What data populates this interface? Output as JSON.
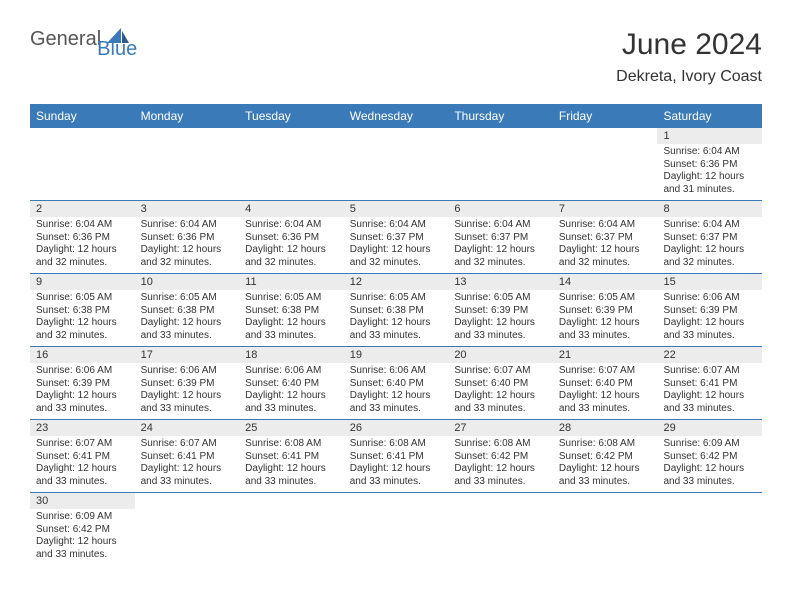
{
  "logo": {
    "part1": "General",
    "part2": "Blue"
  },
  "title": "June 2024",
  "location": "Dekreta, Ivory Coast",
  "colors": {
    "header_bg": "#3a7ab8",
    "header_text": "#ffffff",
    "daynum_bg": "#ececec",
    "body_text": "#333333",
    "border": "#3a7ab8"
  },
  "dayNames": [
    "Sunday",
    "Monday",
    "Tuesday",
    "Wednesday",
    "Thursday",
    "Friday",
    "Saturday"
  ],
  "weeks": [
    [
      {
        "empty": true
      },
      {
        "empty": true
      },
      {
        "empty": true
      },
      {
        "empty": true
      },
      {
        "empty": true
      },
      {
        "empty": true
      },
      {
        "day": "1",
        "sunrise": "Sunrise: 6:04 AM",
        "sunset": "Sunset: 6:36 PM",
        "dl1": "Daylight: 12 hours",
        "dl2": "and 31 minutes."
      }
    ],
    [
      {
        "day": "2",
        "sunrise": "Sunrise: 6:04 AM",
        "sunset": "Sunset: 6:36 PM",
        "dl1": "Daylight: 12 hours",
        "dl2": "and 32 minutes."
      },
      {
        "day": "3",
        "sunrise": "Sunrise: 6:04 AM",
        "sunset": "Sunset: 6:36 PM",
        "dl1": "Daylight: 12 hours",
        "dl2": "and 32 minutes."
      },
      {
        "day": "4",
        "sunrise": "Sunrise: 6:04 AM",
        "sunset": "Sunset: 6:36 PM",
        "dl1": "Daylight: 12 hours",
        "dl2": "and 32 minutes."
      },
      {
        "day": "5",
        "sunrise": "Sunrise: 6:04 AM",
        "sunset": "Sunset: 6:37 PM",
        "dl1": "Daylight: 12 hours",
        "dl2": "and 32 minutes."
      },
      {
        "day": "6",
        "sunrise": "Sunrise: 6:04 AM",
        "sunset": "Sunset: 6:37 PM",
        "dl1": "Daylight: 12 hours",
        "dl2": "and 32 minutes."
      },
      {
        "day": "7",
        "sunrise": "Sunrise: 6:04 AM",
        "sunset": "Sunset: 6:37 PM",
        "dl1": "Daylight: 12 hours",
        "dl2": "and 32 minutes."
      },
      {
        "day": "8",
        "sunrise": "Sunrise: 6:04 AM",
        "sunset": "Sunset: 6:37 PM",
        "dl1": "Daylight: 12 hours",
        "dl2": "and 32 minutes."
      }
    ],
    [
      {
        "day": "9",
        "sunrise": "Sunrise: 6:05 AM",
        "sunset": "Sunset: 6:38 PM",
        "dl1": "Daylight: 12 hours",
        "dl2": "and 32 minutes."
      },
      {
        "day": "10",
        "sunrise": "Sunrise: 6:05 AM",
        "sunset": "Sunset: 6:38 PM",
        "dl1": "Daylight: 12 hours",
        "dl2": "and 33 minutes."
      },
      {
        "day": "11",
        "sunrise": "Sunrise: 6:05 AM",
        "sunset": "Sunset: 6:38 PM",
        "dl1": "Daylight: 12 hours",
        "dl2": "and 33 minutes."
      },
      {
        "day": "12",
        "sunrise": "Sunrise: 6:05 AM",
        "sunset": "Sunset: 6:38 PM",
        "dl1": "Daylight: 12 hours",
        "dl2": "and 33 minutes."
      },
      {
        "day": "13",
        "sunrise": "Sunrise: 6:05 AM",
        "sunset": "Sunset: 6:39 PM",
        "dl1": "Daylight: 12 hours",
        "dl2": "and 33 minutes."
      },
      {
        "day": "14",
        "sunrise": "Sunrise: 6:05 AM",
        "sunset": "Sunset: 6:39 PM",
        "dl1": "Daylight: 12 hours",
        "dl2": "and 33 minutes."
      },
      {
        "day": "15",
        "sunrise": "Sunrise: 6:06 AM",
        "sunset": "Sunset: 6:39 PM",
        "dl1": "Daylight: 12 hours",
        "dl2": "and 33 minutes."
      }
    ],
    [
      {
        "day": "16",
        "sunrise": "Sunrise: 6:06 AM",
        "sunset": "Sunset: 6:39 PM",
        "dl1": "Daylight: 12 hours",
        "dl2": "and 33 minutes."
      },
      {
        "day": "17",
        "sunrise": "Sunrise: 6:06 AM",
        "sunset": "Sunset: 6:39 PM",
        "dl1": "Daylight: 12 hours",
        "dl2": "and 33 minutes."
      },
      {
        "day": "18",
        "sunrise": "Sunrise: 6:06 AM",
        "sunset": "Sunset: 6:40 PM",
        "dl1": "Daylight: 12 hours",
        "dl2": "and 33 minutes."
      },
      {
        "day": "19",
        "sunrise": "Sunrise: 6:06 AM",
        "sunset": "Sunset: 6:40 PM",
        "dl1": "Daylight: 12 hours",
        "dl2": "and 33 minutes."
      },
      {
        "day": "20",
        "sunrise": "Sunrise: 6:07 AM",
        "sunset": "Sunset: 6:40 PM",
        "dl1": "Daylight: 12 hours",
        "dl2": "and 33 minutes."
      },
      {
        "day": "21",
        "sunrise": "Sunrise: 6:07 AM",
        "sunset": "Sunset: 6:40 PM",
        "dl1": "Daylight: 12 hours",
        "dl2": "and 33 minutes."
      },
      {
        "day": "22",
        "sunrise": "Sunrise: 6:07 AM",
        "sunset": "Sunset: 6:41 PM",
        "dl1": "Daylight: 12 hours",
        "dl2": "and 33 minutes."
      }
    ],
    [
      {
        "day": "23",
        "sunrise": "Sunrise: 6:07 AM",
        "sunset": "Sunset: 6:41 PM",
        "dl1": "Daylight: 12 hours",
        "dl2": "and 33 minutes."
      },
      {
        "day": "24",
        "sunrise": "Sunrise: 6:07 AM",
        "sunset": "Sunset: 6:41 PM",
        "dl1": "Daylight: 12 hours",
        "dl2": "and 33 minutes."
      },
      {
        "day": "25",
        "sunrise": "Sunrise: 6:08 AM",
        "sunset": "Sunset: 6:41 PM",
        "dl1": "Daylight: 12 hours",
        "dl2": "and 33 minutes."
      },
      {
        "day": "26",
        "sunrise": "Sunrise: 6:08 AM",
        "sunset": "Sunset: 6:41 PM",
        "dl1": "Daylight: 12 hours",
        "dl2": "and 33 minutes."
      },
      {
        "day": "27",
        "sunrise": "Sunrise: 6:08 AM",
        "sunset": "Sunset: 6:42 PM",
        "dl1": "Daylight: 12 hours",
        "dl2": "and 33 minutes."
      },
      {
        "day": "28",
        "sunrise": "Sunrise: 6:08 AM",
        "sunset": "Sunset: 6:42 PM",
        "dl1": "Daylight: 12 hours",
        "dl2": "and 33 minutes."
      },
      {
        "day": "29",
        "sunrise": "Sunrise: 6:09 AM",
        "sunset": "Sunset: 6:42 PM",
        "dl1": "Daylight: 12 hours",
        "dl2": "and 33 minutes."
      }
    ],
    [
      {
        "day": "30",
        "sunrise": "Sunrise: 6:09 AM",
        "sunset": "Sunset: 6:42 PM",
        "dl1": "Daylight: 12 hours",
        "dl2": "and 33 minutes."
      },
      {
        "empty": true
      },
      {
        "empty": true
      },
      {
        "empty": true
      },
      {
        "empty": true
      },
      {
        "empty": true
      },
      {
        "empty": true
      }
    ]
  ]
}
